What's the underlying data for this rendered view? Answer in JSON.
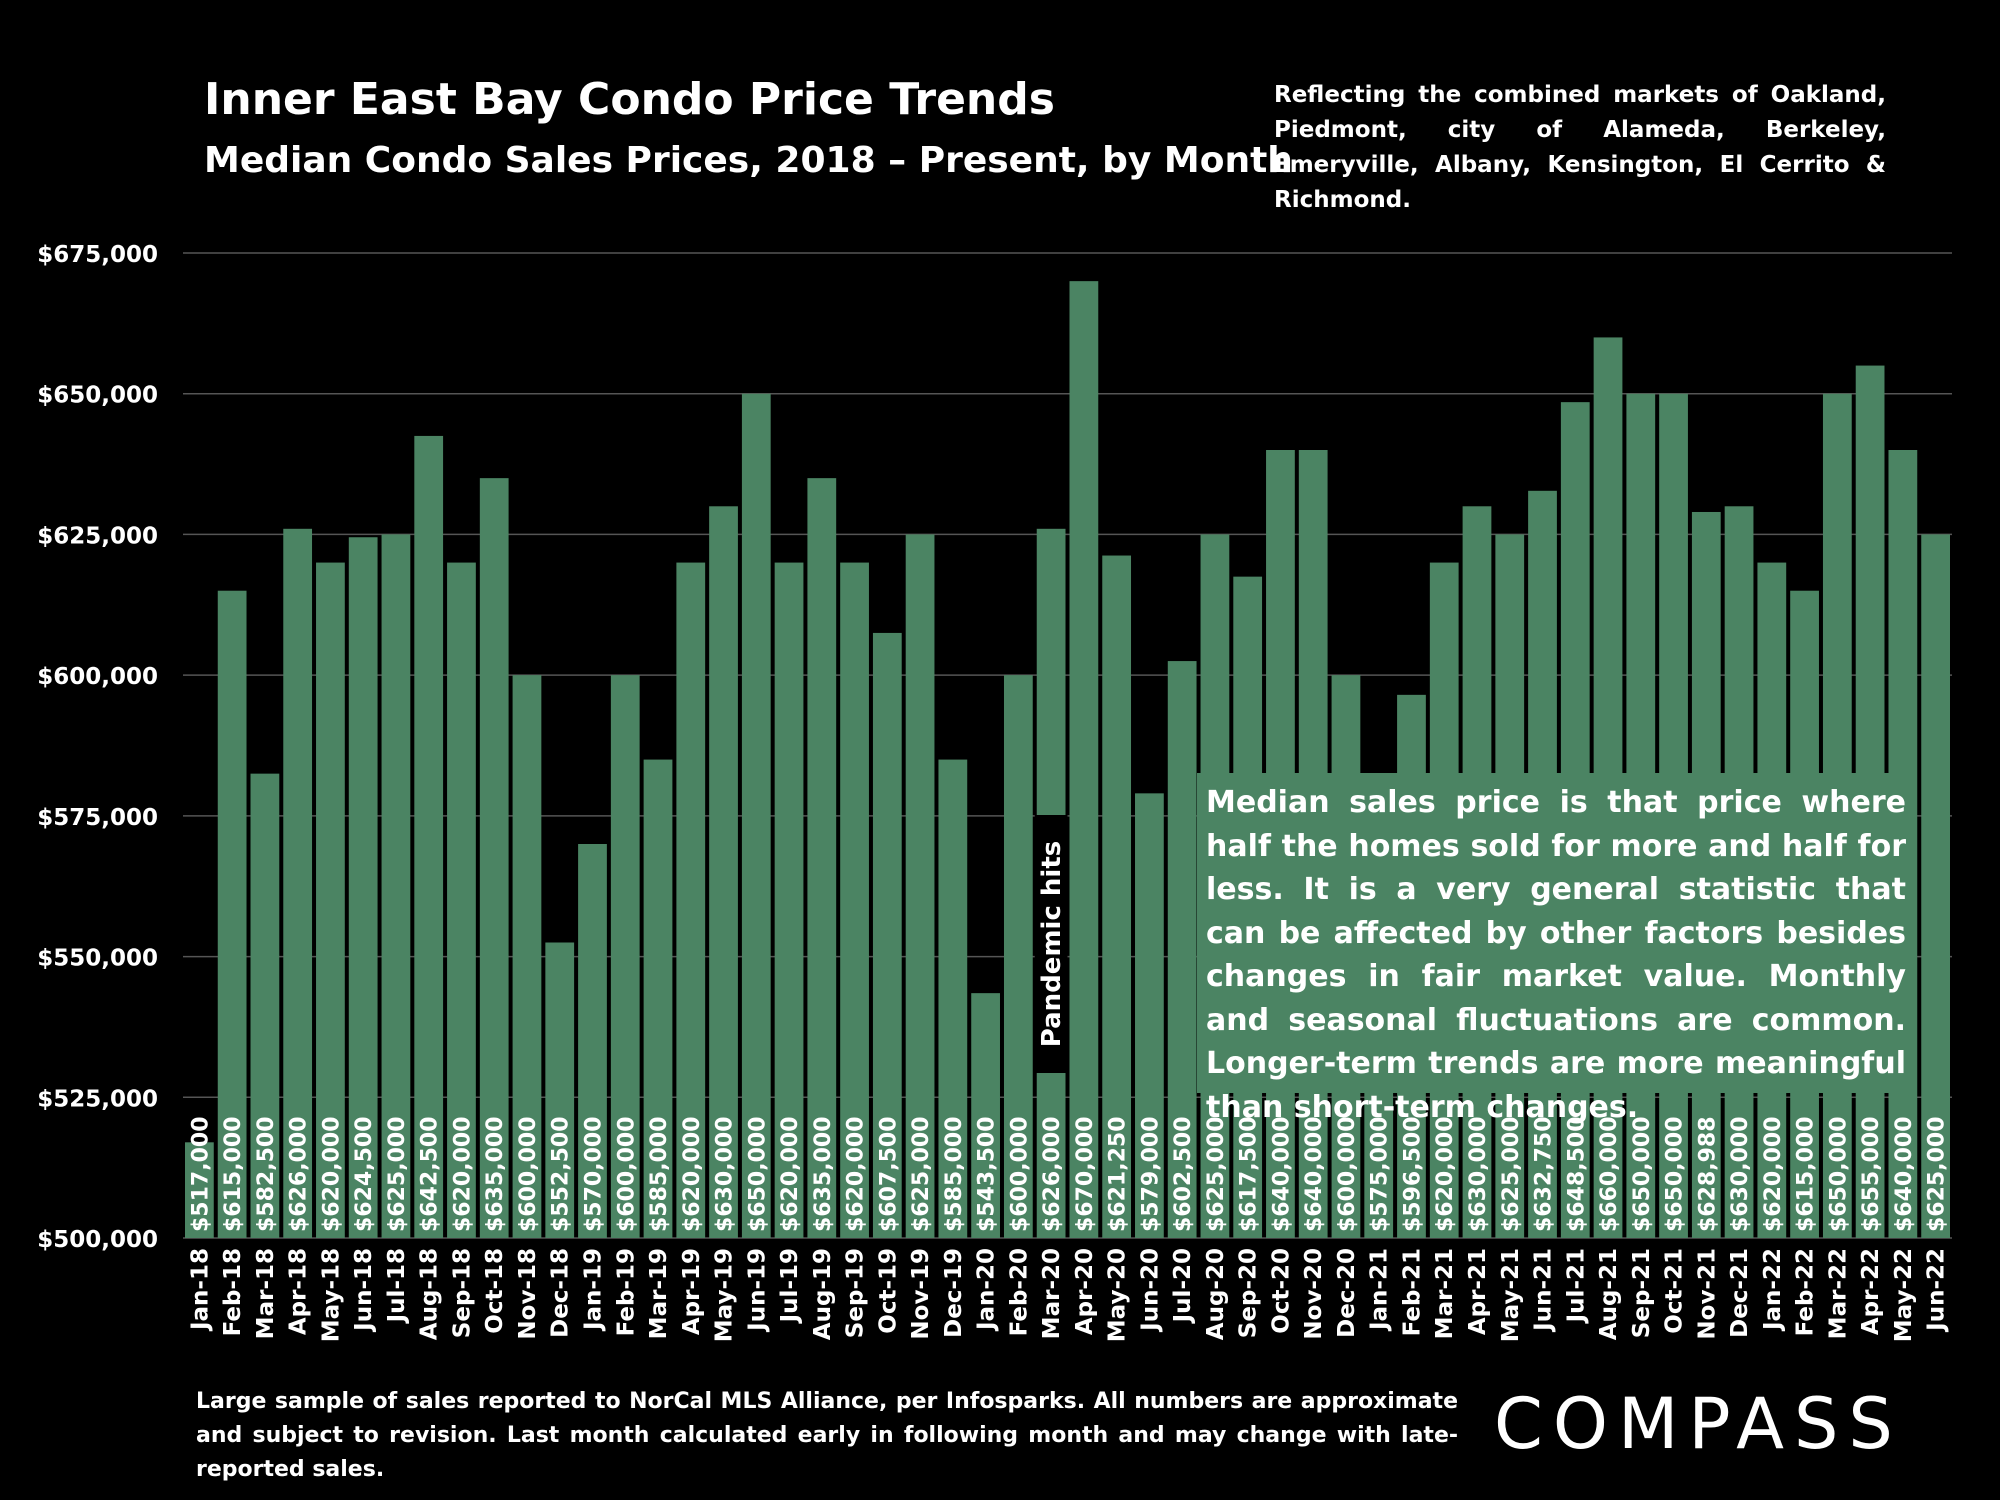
{
  "header": {
    "title": "Inner East Bay Condo Price Trends",
    "subtitle": "Median Condo Sales Prices, 2018 – Present, by Month",
    "note": "Reflecting the combined markets of Oakland, Piedmont, city of Alameda, Berkeley, Emeryville, Albany, Kensington, El Cerrito & Richmond."
  },
  "callout": "Median sales price is that price where half the homes sold for more and half for less. It is a very general statistic that can be affected by other factors besides changes in fair market value. Monthly and seasonal fluctuations are common. Longer-term trends are more meaningful than short-term changes.",
  "footer": "Large sample of sales reported to NorCal MLS Alliance, per Infosparks. All numbers are approximate and subject to revision. Last month calculated early in following month and may change with late-reported sales.",
  "logo": "COMPASS",
  "colors": {
    "bar": "#4b8463",
    "background": "#000000",
    "grid": "#555555",
    "text": "#ffffff"
  },
  "chart_data": {
    "type": "bar",
    "title": "Inner East Bay Condo Price Trends",
    "subtitle": "Median Condo Sales Prices, 2018 – Present, by Month",
    "ylim": [
      500000,
      675000
    ],
    "yticks": [
      500000,
      525000,
      550000,
      575000,
      600000,
      625000,
      650000,
      675000
    ],
    "ytick_labels": [
      "$500,000",
      "$525,000",
      "$550,000",
      "$575,000",
      "$600,000",
      "$625,000",
      "$650,000",
      "$675,000"
    ],
    "grid": true,
    "categories": [
      "Jan-18",
      "Feb-18",
      "Mar-18",
      "Apr-18",
      "May-18",
      "Jun-18",
      "Jul-18",
      "Aug-18",
      "Sep-18",
      "Oct-18",
      "Nov-18",
      "Dec-18",
      "Jan-19",
      "Feb-19",
      "Mar-19",
      "Apr-19",
      "May-19",
      "Jun-19",
      "Jul-19",
      "Aug-19",
      "Sep-19",
      "Oct-19",
      "Nov-19",
      "Dec-19",
      "Jan-20",
      "Feb-20",
      "Mar-20",
      "Apr-20",
      "May-20",
      "Jun-20",
      "Jul-20",
      "Aug-20",
      "Sep-20",
      "Oct-20",
      "Nov-20",
      "Dec-20",
      "Jan-21",
      "Feb-21",
      "Mar-21",
      "Apr-21",
      "May-21",
      "Jun-21",
      "Jul-21",
      "Aug-21",
      "Sep-21",
      "Oct-21",
      "Nov-21",
      "Dec-21",
      "Jan-22",
      "Feb-22",
      "Mar-22",
      "Apr-22",
      "May-22",
      "Jun-22"
    ],
    "values": [
      517000,
      615000,
      582500,
      626000,
      620000,
      624500,
      625000,
      642500,
      620000,
      635000,
      600000,
      552500,
      570000,
      600000,
      585000,
      620000,
      630000,
      650000,
      620000,
      635000,
      620000,
      607500,
      625000,
      585000,
      543500,
      600000,
      626000,
      670000,
      621250,
      579000,
      602500,
      625000,
      617500,
      640000,
      640000,
      600000,
      575000,
      596500,
      620000,
      630000,
      625000,
      632750,
      648500,
      660000,
      650000,
      650000,
      628988,
      630000,
      620000,
      615000,
      650000,
      655000,
      640000,
      625000
    ],
    "value_labels": [
      "$517,000",
      "$615,000",
      "$582,500",
      "$626,000",
      "$620,000",
      "$624,500",
      "$625,000",
      "$642,500",
      "$620,000",
      "$635,000",
      "$600,000",
      "$552,500",
      "$570,000",
      "$600,000",
      "$585,000",
      "$620,000",
      "$630,000",
      "$650,000",
      "$620,000",
      "$635,000",
      "$620,000",
      "$607,500",
      "$625,000",
      "$585,000",
      "$543,500",
      "$600,000",
      "$626,000",
      "$670,000",
      "$621,250",
      "$579,000",
      "$602,500",
      "$625,000",
      "$617,500",
      "$640,000",
      "$640,000",
      "$600,000",
      "$575,000",
      "$596,500",
      "$620,000",
      "$630,000",
      "$625,000",
      "$632,750",
      "$648,500",
      "$660,000",
      "$650,000",
      "$650,000",
      "$628,988",
      "$630,000",
      "$620,000",
      "$615,000",
      "$650,000",
      "$655,000",
      "$640,000",
      "$625,000"
    ],
    "annotation": {
      "text": "Pandemic hits",
      "category": "Mar-20"
    }
  }
}
